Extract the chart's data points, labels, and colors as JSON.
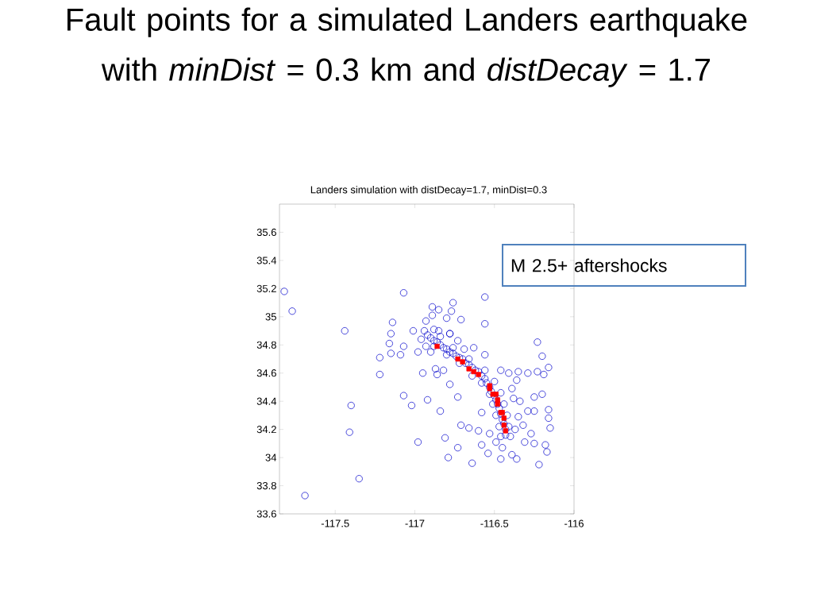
{
  "chart_data": {
    "type": "scatter",
    "title": "Fault points for a simulated Landers earthquake with *minDist* = 0.3 km and *distDecay* = 1.7",
    "subtitle": "Landers simulation with distDecay=1.7, minDist=0.3",
    "annotations": [
      "M 2.5+ aftershocks"
    ],
    "xlim": [
      -117.85,
      -116
    ],
    "ylim": [
      33.6,
      35.8
    ],
    "xticks": [
      -117.5,
      -117,
      -116.5,
      -116
    ],
    "yticks": [
      33.6,
      33.8,
      34,
      34.2,
      34.4,
      34.6,
      34.8,
      35,
      35.2,
      35.4,
      35.6
    ],
    "series": [
      {
        "color": "#0000cc",
        "marker": "circle",
        "x": [
          -117.82,
          -117.77,
          -117.44,
          -117.07,
          -116.56,
          -116.56,
          -116.76,
          -116.89,
          -116.85,
          -116.77,
          -116.71,
          -116.8,
          -116.89,
          -116.93,
          -117.14,
          -117.15,
          -117.01,
          -116.78,
          -116.85,
          -117.69,
          -117.35,
          -117.4,
          -117.41,
          -117.22,
          -117.22,
          -117.16,
          -117.15,
          -117.09,
          -117.07,
          -117.07,
          -117.02,
          -116.98,
          -116.92,
          -116.95,
          -116.87,
          -116.82,
          -116.78,
          -116.98,
          -116.84,
          -116.81,
          -116.79,
          -116.73,
          -116.73,
          -116.71,
          -116.66,
          -116.64,
          -116.6,
          -116.58,
          -116.58,
          -116.54,
          -116.53,
          -116.49,
          -116.45,
          -116.46,
          -116.39,
          -116.36,
          -116.31,
          -116.25,
          -116.18,
          -116.17,
          -116.22,
          -116.16,
          -116.16,
          -116.15,
          -116.2,
          -116.25,
          -116.29,
          -116.25,
          -116.27,
          -116.19,
          -116.16,
          -116.23,
          -116.29,
          -116.2,
          -116.23,
          -116.35,
          -116.36,
          -116.39,
          -116.38,
          -116.34,
          -116.35,
          -116.32,
          -116.37,
          -116.41,
          -116.46,
          -116.56,
          -116.63,
          -116.69,
          -116.73,
          -116.78,
          -116.88,
          -116.94,
          -116.96,
          -116.93,
          -116.9,
          -116.86,
          -116.92,
          -116.9,
          -116.88,
          -116.86,
          -116.84,
          -116.82,
          -116.8,
          -116.78,
          -116.76,
          -116.74,
          -116.72,
          -116.7,
          -116.68,
          -116.66,
          -116.64,
          -116.62,
          -116.6,
          -116.58,
          -116.56,
          -116.55,
          -116.53,
          -116.52,
          -116.5,
          -116.49,
          -116.48,
          -116.47,
          -116.46,
          -116.45,
          -116.44,
          -116.43,
          -116.43,
          -116.88,
          -116.8,
          -116.72,
          -116.64,
          -116.58,
          -116.53,
          -116.51,
          -116.49,
          -116.47,
          -116.46,
          -116.84,
          -116.76,
          -116.66,
          -116.56,
          -116.5,
          -116.46,
          -116.44,
          -116.42,
          -116.41,
          -116.4
        ],
        "values": [
          35.18,
          35.04,
          34.9,
          35.17,
          35.14,
          34.95,
          35.1,
          35.07,
          35.05,
          35.04,
          34.98,
          34.99,
          35.01,
          34.97,
          34.96,
          34.88,
          34.9,
          34.88,
          34.9,
          33.73,
          33.85,
          34.37,
          34.18,
          34.71,
          34.59,
          34.81,
          34.74,
          34.73,
          34.79,
          34.44,
          34.37,
          34.11,
          34.41,
          34.6,
          34.63,
          34.62,
          34.52,
          34.75,
          34.33,
          34.14,
          34.0,
          34.07,
          34.43,
          34.23,
          34.21,
          33.96,
          34.19,
          34.32,
          34.09,
          34.03,
          34.17,
          34.11,
          34.07,
          33.99,
          34.02,
          33.99,
          34.11,
          34.1,
          34.09,
          34.04,
          33.95,
          34.28,
          34.34,
          34.21,
          34.45,
          34.43,
          34.33,
          34.33,
          34.17,
          34.59,
          34.64,
          34.61,
          34.6,
          34.72,
          34.82,
          34.61,
          34.55,
          34.49,
          34.42,
          34.4,
          34.29,
          34.23,
          34.2,
          34.6,
          34.62,
          34.73,
          34.78,
          34.77,
          34.83,
          34.88,
          34.91,
          34.9,
          34.84,
          34.79,
          34.75,
          34.59,
          34.87,
          34.85,
          34.83,
          34.82,
          34.8,
          34.78,
          34.77,
          34.75,
          34.74,
          34.72,
          34.71,
          34.7,
          34.67,
          34.66,
          34.64,
          34.62,
          34.61,
          34.58,
          34.56,
          34.53,
          34.5,
          34.47,
          34.44,
          34.41,
          34.38,
          34.35,
          34.31,
          34.27,
          34.24,
          34.2,
          34.16,
          34.79,
          34.73,
          34.67,
          34.58,
          34.53,
          34.45,
          34.38,
          34.3,
          34.22,
          34.15,
          34.86,
          34.78,
          34.7,
          34.62,
          34.54,
          34.46,
          34.38,
          34.3,
          34.22,
          34.15
        ]
      },
      {
        "color": "#ff0000",
        "marker": "square",
        "x": [
          -116.86,
          -116.73,
          -116.7,
          -116.66,
          -116.63,
          -116.6,
          -116.53,
          -116.53,
          -116.51,
          -116.49,
          -116.48,
          -116.48,
          -116.46,
          -116.45,
          -116.44,
          -116.44,
          -116.43
        ],
        "values": [
          34.79,
          34.7,
          34.68,
          34.63,
          34.61,
          34.59,
          34.51,
          34.49,
          34.45,
          34.45,
          34.41,
          34.38,
          34.32,
          34.32,
          34.28,
          34.23,
          34.19
        ]
      }
    ]
  }
}
